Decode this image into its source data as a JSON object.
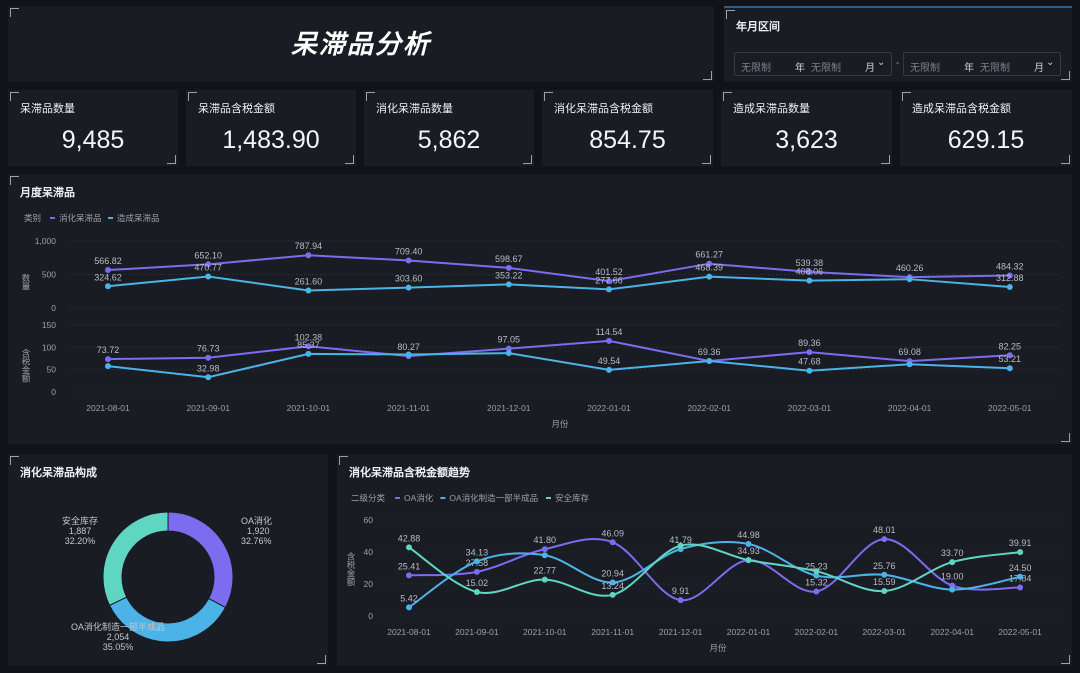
{
  "title": "呆滞品分析",
  "filter": {
    "label": "年月区间",
    "start_year": "无限制",
    "year_unit": "年",
    "start_month": "无限制",
    "month_unit": "月",
    "sep": "-",
    "end_year": "无限制",
    "end_month": "无限制"
  },
  "kpis": [
    {
      "label": "呆滞品数量",
      "value": "9,485"
    },
    {
      "label": "呆滞品含税金额",
      "value": "1,483.90"
    },
    {
      "label": "消化呆滞品数量",
      "value": "5,862"
    },
    {
      "label": "消化呆滞品含税金额",
      "value": "854.75"
    },
    {
      "label": "造成呆滞品数量",
      "value": "3,623"
    },
    {
      "label": "造成呆滞品含税金额",
      "value": "629.15"
    }
  ],
  "colors": {
    "purple": "#7b6cf0",
    "blue": "#4bb3e8",
    "green": "#5fd6c2"
  },
  "chart_data": [
    {
      "type": "line",
      "title": "月度呆滞品",
      "legend_title": "类别",
      "xlabel": "月份",
      "categories": [
        "2021-08-01",
        "2021-09-01",
        "2021-10-01",
        "2021-11-01",
        "2021-12-01",
        "2022-01-01",
        "2022-02-01",
        "2022-03-01",
        "2022-04-01",
        "2022-05-01"
      ],
      "panels": [
        {
          "ylabel": "数量",
          "ylim": [
            0,
            1000
          ],
          "ticks": [
            "0",
            "500",
            "1,000"
          ],
          "tick_values": [
            0,
            500,
            1000
          ],
          "series": [
            {
              "name": "消化呆滞品",
              "values": [
                566.82,
                652.1,
                787.94,
                709.4,
                598.67,
                401.52,
                661.27,
                539.38,
                460.26,
                484.32
              ],
              "labels": [
                "566.82",
                "652.10",
                "787.94",
                "709.40",
                "598.67",
                "401.52",
                "661.27",
                "539.38",
                "460.26",
                "484.32"
              ]
            },
            {
              "name": "造成呆滞品",
              "values": [
                324.62,
                470.77,
                261.6,
                303.6,
                353.22,
                277.66,
                468.39,
                408.06,
                430,
                312.88
              ],
              "labels": [
                "324.62",
                "470.77",
                "261.60",
                "303.60",
                "353.22",
                "277.66",
                "468.39",
                "408.06",
                "",
                "312.88"
              ]
            }
          ]
        },
        {
          "ylabel": "含税金额",
          "ylim": [
            0,
            150
          ],
          "ticks": [
            "0",
            "50",
            "100",
            "150"
          ],
          "tick_values": [
            0,
            50,
            100,
            150
          ],
          "series": [
            {
              "name": "消化呆滞品",
              "values": [
                73.72,
                76.73,
                102.38,
                80.27,
                97.05,
                114.54,
                69.36,
                89.36,
                69.08,
                82.25
              ],
              "labels": [
                "73.72",
                "76.73",
                "102.38",
                "80.27",
                "97.05",
                "114.54",
                "69.36",
                "89.36",
                "69.08",
                "82.25"
              ]
            },
            {
              "name": "造成呆滞品",
              "values": [
                58,
                32.98,
                85.37,
                84,
                87,
                49.54,
                69.36,
                47.68,
                62,
                53.21
              ],
              "labels": [
                "",
                "32.98",
                "85.37",
                "",
                "",
                "49.54",
                "",
                "47.68",
                "",
                "53.21"
              ]
            }
          ]
        }
      ]
    },
    {
      "type": "pie",
      "title": "消化呆滞品构成",
      "slices": [
        {
          "name": "OA消化",
          "value": "1,920",
          "percent": "32.76%",
          "pct": 32.76
        },
        {
          "name": "OA消化制造一部半成品",
          "value": "2,054",
          "percent": "35.05%",
          "pct": 35.05
        },
        {
          "name": "安全库存",
          "value": "1,887",
          "percent": "32.20%",
          "pct": 32.2
        }
      ]
    },
    {
      "type": "line",
      "title": "消化呆滞品含税金额趋势",
      "legend_title": "二级分类",
      "xlabel": "月份",
      "ylabel": "含税金额",
      "ylim": [
        0,
        60
      ],
      "ticks": [
        "0",
        "20",
        "40",
        "60"
      ],
      "tick_values": [
        0,
        20,
        40,
        60
      ],
      "categories": [
        "2021-08-01",
        "2021-09-01",
        "2021-10-01",
        "2021-11-01",
        "2021-12-01",
        "2022-01-01",
        "2022-02-01",
        "2022-03-01",
        "2022-04-01",
        "2022-05-01"
      ],
      "series": [
        {
          "name": "OA消化",
          "values": [
            25.41,
            27.58,
            41.8,
            46.09,
            9.91,
            34.93,
            15.32,
            48.01,
            19.0,
            17.84
          ],
          "labels": [
            "25.41",
            "27.58",
            "41.80",
            "46.09",
            "9.91",
            "",
            "15.32",
            "48.01",
            "19.00",
            "17.84"
          ]
        },
        {
          "name": "OA消化制造一部半成品",
          "values": [
            5.42,
            34.13,
            38,
            20.94,
            41.79,
            44.98,
            25.23,
            25.76,
            16.5,
            24.5
          ],
          "labels": [
            "5.42",
            "34.13",
            "",
            "20.94",
            "41.79",
            "44.98",
            "25.23",
            "25.76",
            "",
            "24.50"
          ]
        },
        {
          "name": "安全库存",
          "values": [
            42.88,
            15.02,
            22.77,
            13.24,
            44,
            34.93,
            28,
            15.59,
            33.7,
            39.91
          ],
          "labels": [
            "42.88",
            "15.02",
            "22.77",
            "13.24",
            "",
            "34.93",
            "",
            "15.59",
            "33.70",
            "39.91"
          ]
        }
      ]
    }
  ]
}
